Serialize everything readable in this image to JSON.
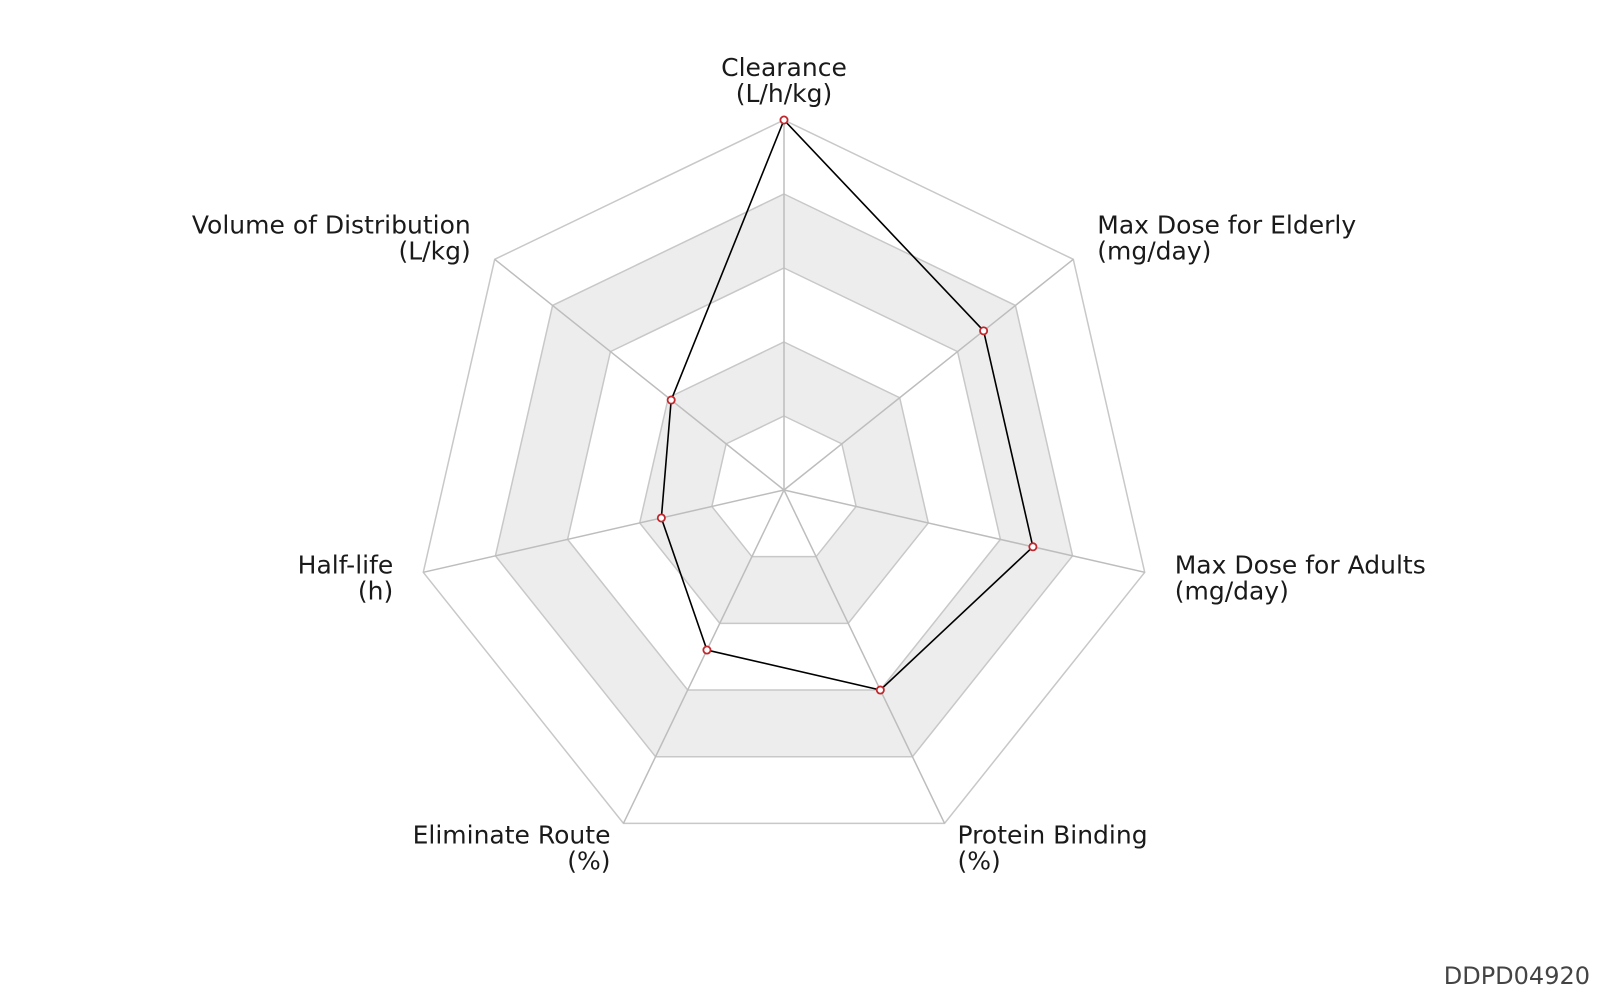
{
  "chart_data": {
    "type": "radar",
    "title": "",
    "axes": [
      {
        "name": "Clearance",
        "unit": "(L/h/kg)"
      },
      {
        "name": "Max Dose for Elderly",
        "unit": "(mg/day)"
      },
      {
        "name": "Max Dose for Adults",
        "unit": "(mg/day)"
      },
      {
        "name": "Protein Binding",
        "unit": "(%)"
      },
      {
        "name": "Eliminate Route",
        "unit": "(%)"
      },
      {
        "name": "Half-life",
        "unit": "(h)"
      },
      {
        "name": "Volume of Distribution",
        "unit": "(L/kg)"
      }
    ],
    "series": [
      {
        "values": [
          1.0,
          0.69,
          0.69,
          0.6,
          0.48,
          0.34,
          0.39
        ]
      }
    ],
    "range": [
      0,
      1
    ],
    "rings": 5,
    "grid": true,
    "colors": {
      "line": "#000000",
      "marker": "#c0282d",
      "band": "#ededed",
      "grid": "#c8c8c8"
    }
  },
  "watermark": "DDPD04920"
}
